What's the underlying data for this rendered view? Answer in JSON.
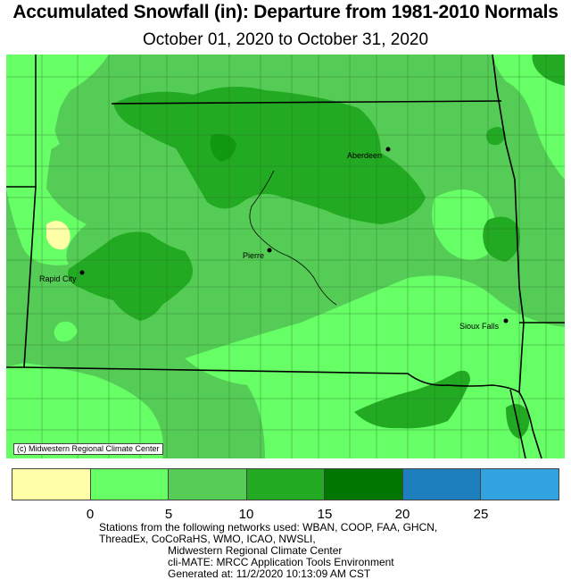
{
  "header": {
    "title": "Accumulated Snowfall (in): Departure from 1981-2010 Normals",
    "subtitle": "October 01, 2020 to October 31, 2020"
  },
  "map": {
    "copyright": "(c) Midwestern Regional Climate Center",
    "cities": [
      {
        "name": "Aberdeen"
      },
      {
        "name": "Pierre"
      },
      {
        "name": "Rapid City"
      },
      {
        "name": "Sioux Falls"
      }
    ]
  },
  "legend": {
    "colors": [
      "#ffffa8",
      "#66ff66",
      "#55cc55",
      "#22aa22",
      "#007700",
      "#1e7fbf",
      "#33a3e0"
    ],
    "ticks": [
      "0",
      "5",
      "10",
      "15",
      "20",
      "25"
    ]
  },
  "footer": {
    "line1": "Stations from the following networks used: WBAN, COOP, FAA, GHCN,",
    "line2": "ThreadEx, CoCoRaHS, WMO, ICAO, NWSLI,",
    "line3": "Midwestern Regional Climate Center",
    "line4": "cli-MATE: MRCC Application Tools Environment",
    "line5": "Generated at: 11/2/2020 10:13:09 AM CST"
  }
}
